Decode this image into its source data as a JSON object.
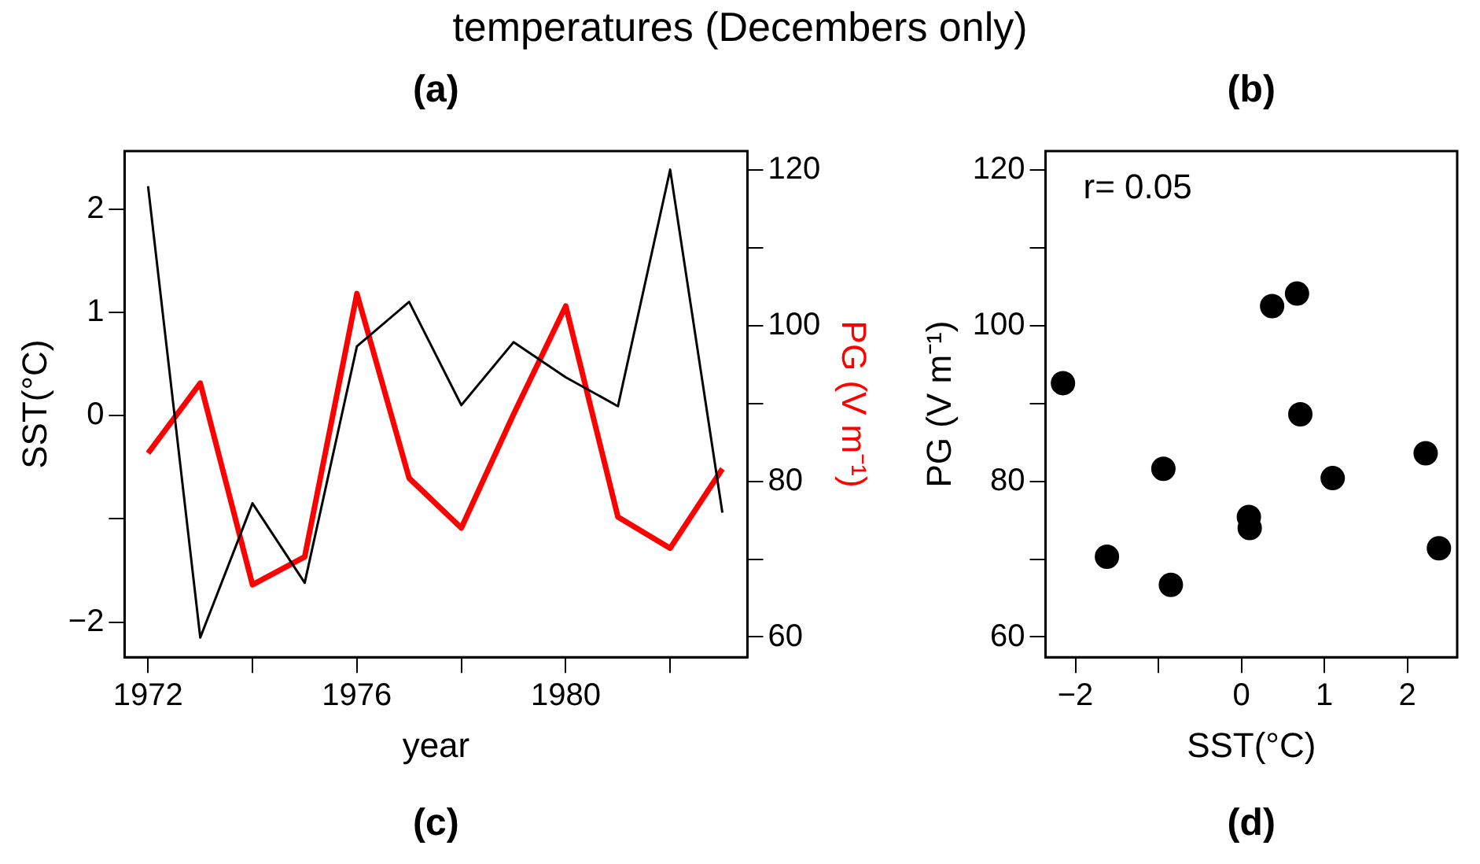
{
  "chart_data": [
    {
      "type": "line",
      "title": "temperatures (Decembers only)",
      "xlabel": "year",
      "ylabel": "SST(°C)",
      "y2label": "PG (V m⁻¹)",
      "annotations": [
        "(a)",
        "(c)"
      ],
      "x": [
        1972,
        1973,
        1974,
        1975,
        1976,
        1977,
        1978,
        1979,
        1980,
        1981,
        1982,
        1983
      ],
      "series": [
        {
          "color": "#000000",
          "values": [
            2.22,
            -2.15,
            -0.85,
            -1.62,
            0.67,
            1.1,
            0.1,
            0.71,
            0.37,
            0.09,
            2.38,
            -0.94
          ]
        },
        {
          "color": "#ff0000",
          "axis": "y2",
          "values": [
            83.6,
            92.6,
            66.7,
            70.3,
            104.1,
            80.4,
            74.0,
            88.6,
            102.5,
            75.4,
            71.4,
            81.6
          ]
        }
      ],
      "xlim": [
        1971.55,
        1983.48
      ],
      "xticks": [
        1972,
        {
          "value": 1974,
          "label": null
        },
        1976,
        {
          "value": 1978,
          "label": null
        },
        1980,
        {
          "value": 1982,
          "label": null
        }
      ],
      "ylim": [
        -2.34,
        2.56
      ],
      "yticks": [
        {
          "value": -2,
          "label": "−2"
        },
        {
          "value": -1,
          "label": null
        },
        0,
        1,
        2
      ],
      "y2lim": [
        57.4,
        122.4
      ],
      "y2ticks": [
        60,
        {
          "value": 70,
          "label": null
        },
        80,
        {
          "value": 90,
          "label": null
        },
        100,
        {
          "value": 110,
          "label": null
        },
        120
      ],
      "grid": false,
      "legend": false,
      "marker": "none"
    },
    {
      "type": "scatter",
      "xlabel": "SST(°C)",
      "ylabel": "PG (V m⁻¹)",
      "annotations": [
        "(b)",
        "(d)",
        "r= 0.05"
      ],
      "x": [
        2.22,
        -2.15,
        -0.85,
        -1.62,
        0.67,
        1.1,
        0.1,
        0.71,
        0.37,
        0.09,
        2.38,
        -0.94
      ],
      "values": [
        83.6,
        92.6,
        66.7,
        70.3,
        104.1,
        80.4,
        74.0,
        88.6,
        102.5,
        75.4,
        71.4,
        81.6
      ],
      "color": "#000000",
      "xlim": [
        -2.36,
        2.6
      ],
      "xticks": [
        {
          "value": -2,
          "label": "−2"
        },
        {
          "value": -1,
          "label": null
        },
        0,
        1,
        2
      ],
      "ylim": [
        57.4,
        122.4
      ],
      "yticks": [
        60,
        {
          "value": 70,
          "label": null
        },
        80,
        {
          "value": 90,
          "label": null
        },
        100,
        {
          "value": 110,
          "label": null
        },
        120
      ],
      "grid": false,
      "legend": false,
      "marker": "circle"
    }
  ]
}
